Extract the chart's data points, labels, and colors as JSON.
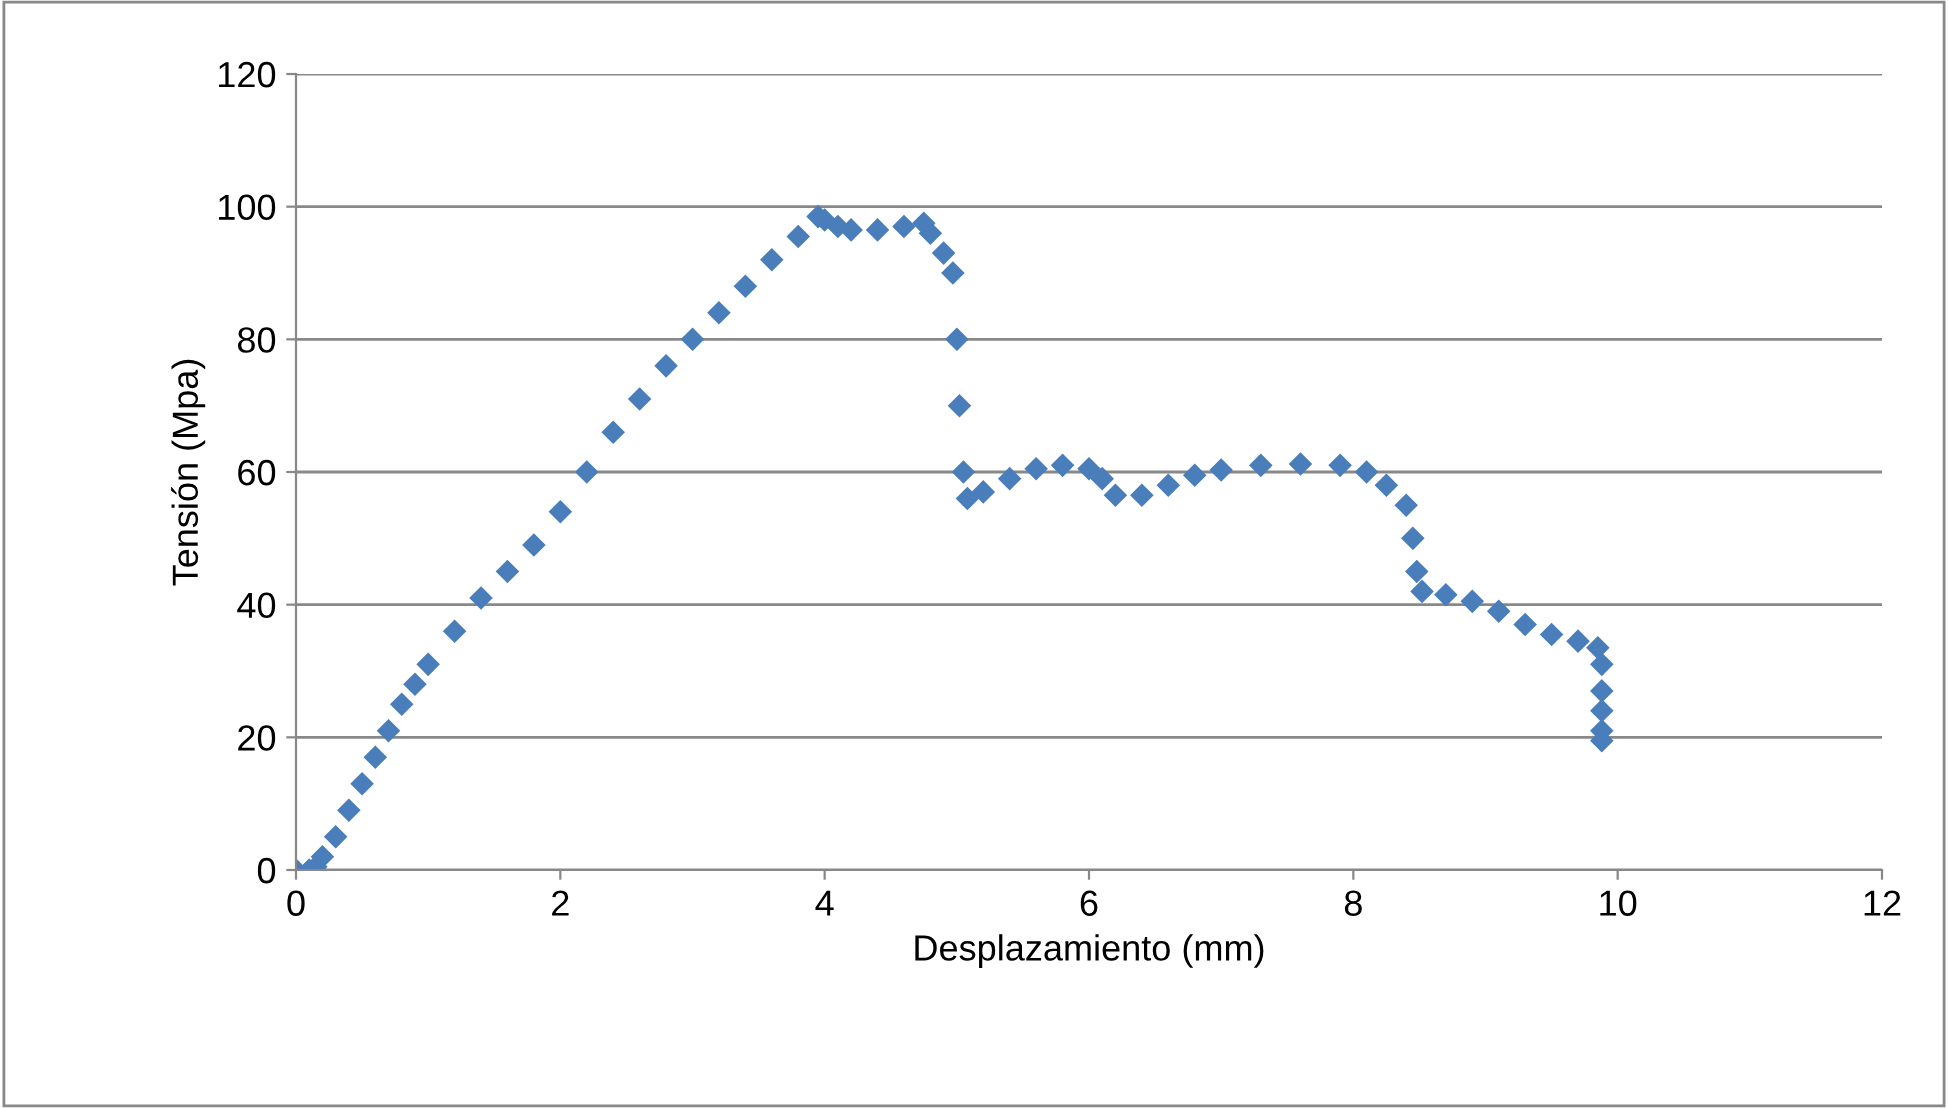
{
  "chart_data": {
    "type": "scatter",
    "xlabel": "Desplazamiento (mm)",
    "ylabel": "Tensión (Mpa)",
    "x": [
      0,
      0.1,
      0.15,
      0.2,
      0.3,
      0.4,
      0.5,
      0.6,
      0.7,
      0.8,
      0.9,
      1.0,
      1.2,
      1.4,
      1.6,
      1.8,
      2.0,
      2.2,
      2.4,
      2.6,
      2.8,
      3.0,
      3.2,
      3.4,
      3.6,
      3.8,
      3.95,
      4.0,
      4.1,
      4.2,
      4.4,
      4.6,
      4.75,
      4.8,
      4.9,
      4.97,
      5.0,
      5.02,
      5.05,
      5.08,
      5.2,
      5.4,
      5.6,
      5.8,
      6.0,
      6.1,
      6.2,
      6.4,
      6.6,
      6.8,
      7.0,
      7.3,
      7.6,
      7.9,
      8.1,
      8.25,
      8.4,
      8.45,
      8.48,
      8.52,
      8.7,
      8.9,
      9.1,
      9.3,
      9.5,
      9.7,
      9.85,
      9.88,
      9.88,
      9.88,
      9.88,
      9.88
    ],
    "series": [
      {
        "color": "#4a7ebb",
        "values": [
          0,
          0,
          0.5,
          2,
          5,
          9,
          13,
          17,
          21,
          25,
          28,
          31,
          36,
          41,
          45,
          49,
          54,
          60,
          66,
          71,
          76,
          80,
          84,
          88,
          92,
          95.5,
          98.5,
          98,
          97,
          96.5,
          96.5,
          97,
          97.5,
          96,
          93,
          90,
          80,
          70,
          60,
          56,
          57,
          59,
          60.5,
          61,
          60.5,
          59,
          56.5,
          56.5,
          58,
          59.5,
          60.3,
          61,
          61.2,
          61,
          60,
          58,
          55,
          50,
          45,
          42,
          41.5,
          40.5,
          39,
          37,
          35.5,
          34.5,
          33.5,
          31,
          27,
          24,
          21,
          19.5
        ]
      }
    ],
    "xlim": [
      0,
      12
    ],
    "xticks": [
      0,
      2,
      4,
      6,
      8,
      10,
      12
    ],
    "ylim": [
      0,
      120
    ],
    "yticks": [
      0,
      20,
      40,
      60,
      80,
      100,
      120
    ],
    "grid": "y",
    "legend": false,
    "marker": "diamond"
  }
}
